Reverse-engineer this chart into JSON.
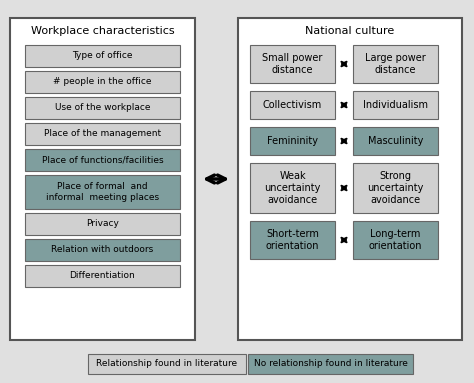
{
  "background_color": "#e0e0e0",
  "left_panel_title": "Workplace characteristics",
  "right_panel_title": "National culture",
  "left_items": [
    {
      "text": "Type of office",
      "color": "#d0d0d0"
    },
    {
      "text": "# people in the office",
      "color": "#d0d0d0"
    },
    {
      "text": "Use of the workplace",
      "color": "#d0d0d0"
    },
    {
      "text": "Place of the management",
      "color": "#d0d0d0"
    },
    {
      "text": "Place of functions/facilities",
      "color": "#7f9e9e"
    },
    {
      "text": "Place of formal  and\ninformal  meeting places",
      "color": "#7f9e9e"
    },
    {
      "text": "Privacy",
      "color": "#d0d0d0"
    },
    {
      "text": "Relation with outdoors",
      "color": "#7f9e9e"
    },
    {
      "text": "Differentiation",
      "color": "#d0d0d0"
    }
  ],
  "right_pairs": [
    {
      "left": "Small power\ndistance",
      "right": "Large power\ndistance",
      "color": "#d0d0d0",
      "lines": 2
    },
    {
      "left": "Collectivism",
      "right": "Individualism",
      "color": "#d0d0d0",
      "lines": 1
    },
    {
      "left": "Femininity",
      "right": "Masculinity",
      "color": "#7f9e9e",
      "lines": 1
    },
    {
      "left": "Weak\nuncertainty\navoidance",
      "right": "Strong\nuncertainty\navoidance",
      "color": "#d0d0d0",
      "lines": 3
    },
    {
      "left": "Short-term\norientation",
      "right": "Long-term\norientation",
      "color": "#7f9e9e",
      "lines": 2
    }
  ],
  "legend_left": {
    "text": "Relationship found in literature",
    "color": "#d0d0d0"
  },
  "legend_right": {
    "text": "No relationship found in literature",
    "color": "#7f9e9e"
  }
}
